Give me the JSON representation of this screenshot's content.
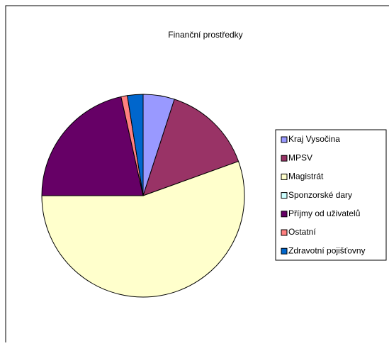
{
  "chart_data": {
    "type": "pie",
    "title": "Finanční prostředky",
    "categories": [
      "Kraj Vysočina",
      "MPSV",
      "Magistrát",
      "Sponzorské dary",
      "Příjmy od uživatelů",
      "Ostatní",
      "Zdravotní pojišťovny"
    ],
    "values": [
      5,
      14.5,
      55.5,
      0,
      21.5,
      1,
      2.5
    ],
    "colors": [
      "#9999ff",
      "#993366",
      "#ffffcc",
      "#ccffff",
      "#660066",
      "#ff8080",
      "#0066cc"
    ],
    "legend": "right"
  }
}
